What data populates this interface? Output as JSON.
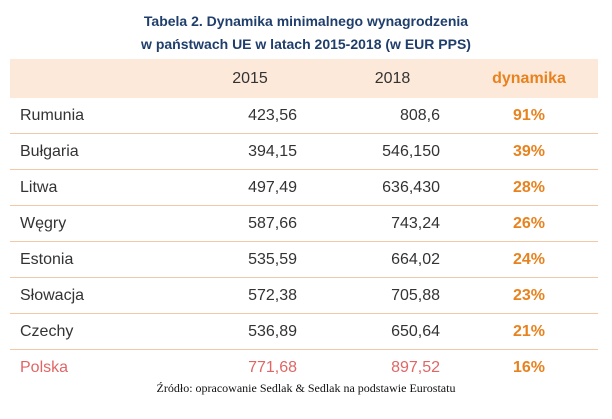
{
  "title": {
    "line1": "Tabela 2. Dynamika minimalnego wynagrodzenia",
    "line2": "w państwach UE w latach 2015-2018 (w EUR PPS)"
  },
  "table": {
    "headers": [
      "",
      "2015",
      "2018",
      "dynamika"
    ],
    "rows": [
      {
        "country": "Rumunia",
        "v2015": "423,56",
        "v2018": "808,6",
        "dynamika": "91%"
      },
      {
        "country": "Bułgaria",
        "v2015": "394,15",
        "v2018": "546,150",
        "dynamika": "39%"
      },
      {
        "country": "Litwa",
        "v2015": "497,49",
        "v2018": "636,430",
        "dynamika": "28%"
      },
      {
        "country": "Węgry",
        "v2015": "587,66",
        "v2018": "743,24",
        "dynamika": "26%"
      },
      {
        "country": "Estonia",
        "v2015": "535,59",
        "v2018": "664,02",
        "dynamika": "24%"
      },
      {
        "country": "Słowacja",
        "v2015": "572,38",
        "v2018": "705,88",
        "dynamika": "23%"
      },
      {
        "country": "Czechy",
        "v2015": "536,89",
        "v2018": "650,64",
        "dynamika": "21%"
      },
      {
        "country": "Polska",
        "v2015": "771,68",
        "v2018": "897,52",
        "dynamika": "16%"
      }
    ]
  },
  "source": "Źródło: opracowanie Sedlak & Sedlak na podstawie Eurostatu",
  "colors": {
    "title": "#1f3e6b",
    "header_bg": "#fde9d9",
    "accent": "#e8821e",
    "highlight": "#e06666",
    "divider": "#f3c8a6"
  }
}
